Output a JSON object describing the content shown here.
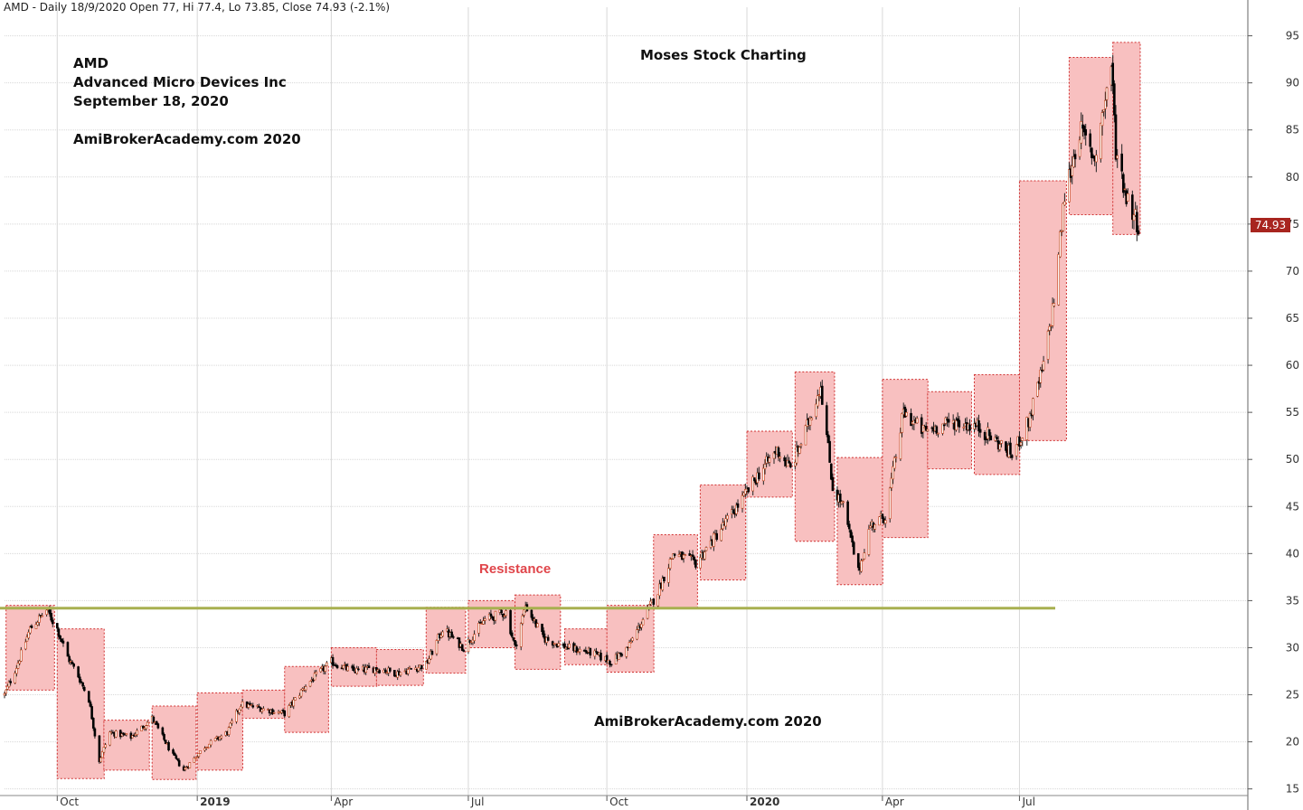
{
  "header": "AMD - Daily 18/9/2020 Open 77, Hi 77.4, Lo 73.85, Close 74.93 (-2.1%)",
  "annotations": {
    "ticker": "AMD",
    "company": "Advanced Micro Devices Inc",
    "date": "September 18, 2020",
    "site_top": "AmiBrokerAcademy.com  2020",
    "brand": "Moses Stock Charting",
    "site_bottom": "AmiBrokerAcademy.com  2020",
    "resistance": "Resistance"
  },
  "last_price_label": "74.93",
  "colors": {
    "box_fill": "#f8c0c0",
    "box_border": "#d03030",
    "resistance_line": "#a8b050",
    "resistance_text": "#e0454a",
    "last_price_bg": "#a8251f",
    "grid": "#d8d8d8"
  },
  "chart_data": {
    "type": "candlestick",
    "title": "AMD - Daily",
    "x_ticks": [
      "Oct",
      "2019",
      "Apr",
      "Jul",
      "Oct",
      "2020",
      "Apr",
      "Jul"
    ],
    "y_ticks": [
      15,
      20,
      25,
      30,
      35,
      40,
      45,
      50,
      55,
      60,
      65,
      70,
      75,
      80,
      85,
      90,
      95
    ],
    "ylim": [
      14,
      98
    ],
    "x_range": [
      "2018-08-27",
      "2020-09-18"
    ],
    "grid": true,
    "resistance_level": 34.2,
    "last_close": 74.93,
    "price_path": [
      [
        "2018-08-27",
        25.0
      ],
      [
        "2018-09-04",
        28.0
      ],
      [
        "2018-09-13",
        32.0
      ],
      [
        "2018-09-24",
        34.0
      ],
      [
        "2018-10-01",
        32.0
      ],
      [
        "2018-10-08",
        29.0
      ],
      [
        "2018-10-15",
        27.0
      ],
      [
        "2018-10-22",
        24.5
      ],
      [
        "2018-10-29",
        18.0
      ],
      [
        "2018-11-05",
        21.0
      ],
      [
        "2018-11-19",
        20.5
      ],
      [
        "2018-12-03",
        22.5
      ],
      [
        "2018-12-17",
        18.5
      ],
      [
        "2018-12-24",
        17.0
      ],
      [
        "2019-01-07",
        19.5
      ],
      [
        "2019-01-22",
        21.0
      ],
      [
        "2019-01-31",
        24.0
      ],
      [
        "2019-02-15",
        23.5
      ],
      [
        "2019-03-01",
        23.0
      ],
      [
        "2019-03-15",
        26.0
      ],
      [
        "2019-04-01",
        28.5
      ],
      [
        "2019-04-15",
        27.5
      ],
      [
        "2019-05-01",
        27.8
      ],
      [
        "2019-05-15",
        27.3
      ],
      [
        "2019-06-03",
        28.2
      ],
      [
        "2019-06-14",
        32.0
      ],
      [
        "2019-06-28",
        30.0
      ],
      [
        "2019-07-12",
        33.0
      ],
      [
        "2019-07-26",
        33.8
      ],
      [
        "2019-08-01",
        30.0
      ],
      [
        "2019-08-08",
        34.5
      ],
      [
        "2019-08-20",
        31.0
      ],
      [
        "2019-09-05",
        30.0
      ],
      [
        "2019-09-20",
        29.5
      ],
      [
        "2019-10-04",
        28.5
      ],
      [
        "2019-10-15",
        30.0
      ],
      [
        "2019-10-25",
        33.0
      ],
      [
        "2019-11-04",
        36.0
      ],
      [
        "2019-11-14",
        40.0
      ],
      [
        "2019-11-29",
        39.0
      ],
      [
        "2019-12-13",
        42.0
      ],
      [
        "2019-12-31",
        46.0
      ],
      [
        "2020-01-10",
        48.5
      ],
      [
        "2020-01-22",
        51.0
      ],
      [
        "2020-01-31",
        49.0
      ],
      [
        "2020-02-10",
        53.0
      ],
      [
        "2020-02-20",
        58.0
      ],
      [
        "2020-02-28",
        47.0
      ],
      [
        "2020-03-06",
        45.0
      ],
      [
        "2020-03-16",
        38.0
      ],
      [
        "2020-03-24",
        43.0
      ],
      [
        "2020-04-03",
        44.0
      ],
      [
        "2020-04-15",
        55.0
      ],
      [
        "2020-04-28",
        53.0
      ],
      [
        "2020-05-08",
        53.5
      ],
      [
        "2020-05-20",
        54.0
      ],
      [
        "2020-06-03",
        53.5
      ],
      [
        "2020-06-15",
        52.0
      ],
      [
        "2020-06-26",
        50.5
      ],
      [
        "2020-07-07",
        54.0
      ],
      [
        "2020-07-17",
        60.0
      ],
      [
        "2020-07-24",
        67.0
      ],
      [
        "2020-07-31",
        78.0
      ],
      [
        "2020-08-10",
        85.0
      ],
      [
        "2020-08-20",
        82.0
      ],
      [
        "2020-08-31",
        92.0
      ],
      [
        "2020-09-03",
        83.0
      ],
      [
        "2020-09-10",
        78.0
      ],
      [
        "2020-09-18",
        74.93
      ]
    ],
    "range_boxes": [
      {
        "start": "2018-08-28",
        "end": "2018-09-28",
        "low": 25.5,
        "high": 34.5
      },
      {
        "start": "2018-10-01",
        "end": "2018-10-31",
        "low": 16.1,
        "high": 32.0
      },
      {
        "start": "2018-11-01",
        "end": "2018-11-30",
        "low": 17.0,
        "high": 22.3
      },
      {
        "start": "2018-12-03",
        "end": "2018-12-31",
        "low": 16.0,
        "high": 23.8
      },
      {
        "start": "2019-01-02",
        "end": "2019-01-31",
        "low": 17.0,
        "high": 25.2
      },
      {
        "start": "2019-02-01",
        "end": "2019-02-28",
        "low": 22.5,
        "high": 25.5
      },
      {
        "start": "2019-03-01",
        "end": "2019-03-29",
        "low": 21.0,
        "high": 28.0
      },
      {
        "start": "2019-04-01",
        "end": "2019-04-30",
        "low": 25.9,
        "high": 30.0
      },
      {
        "start": "2019-05-01",
        "end": "2019-05-31",
        "low": 26.0,
        "high": 29.8
      },
      {
        "start": "2019-06-03",
        "end": "2019-06-28",
        "low": 27.3,
        "high": 34.3
      },
      {
        "start": "2019-07-01",
        "end": "2019-07-31",
        "low": 30.0,
        "high": 35.0
      },
      {
        "start": "2019-08-01",
        "end": "2019-08-30",
        "low": 27.7,
        "high": 35.6
      },
      {
        "start": "2019-09-03",
        "end": "2019-09-30",
        "low": 28.2,
        "high": 32.0
      },
      {
        "start": "2019-10-01",
        "end": "2019-10-31",
        "low": 27.4,
        "high": 34.5
      },
      {
        "start": "2019-11-01",
        "end": "2019-11-29",
        "low": 34.2,
        "high": 42.0
      },
      {
        "start": "2019-12-02",
        "end": "2019-12-31",
        "low": 37.2,
        "high": 47.3
      },
      {
        "start": "2020-01-02",
        "end": "2020-01-31",
        "low": 46.0,
        "high": 53.0
      },
      {
        "start": "2020-02-03",
        "end": "2020-02-28",
        "low": 41.3,
        "high": 59.3
      },
      {
        "start": "2020-03-02",
        "end": "2020-03-31",
        "low": 36.7,
        "high": 50.2
      },
      {
        "start": "2020-04-01",
        "end": "2020-04-30",
        "low": 41.7,
        "high": 58.5
      },
      {
        "start": "2020-05-01",
        "end": "2020-05-29",
        "low": 49.0,
        "high": 57.2
      },
      {
        "start": "2020-06-01",
        "end": "2020-06-30",
        "low": 48.4,
        "high": 59.0
      },
      {
        "start": "2020-07-01",
        "end": "2020-07-31",
        "low": 52.0,
        "high": 79.6
      },
      {
        "start": "2020-08-03",
        "end": "2020-08-31",
        "low": 76.0,
        "high": 92.7
      },
      {
        "start": "2020-09-01",
        "end": "2020-09-18",
        "low": 73.9,
        "high": 94.3
      }
    ]
  }
}
